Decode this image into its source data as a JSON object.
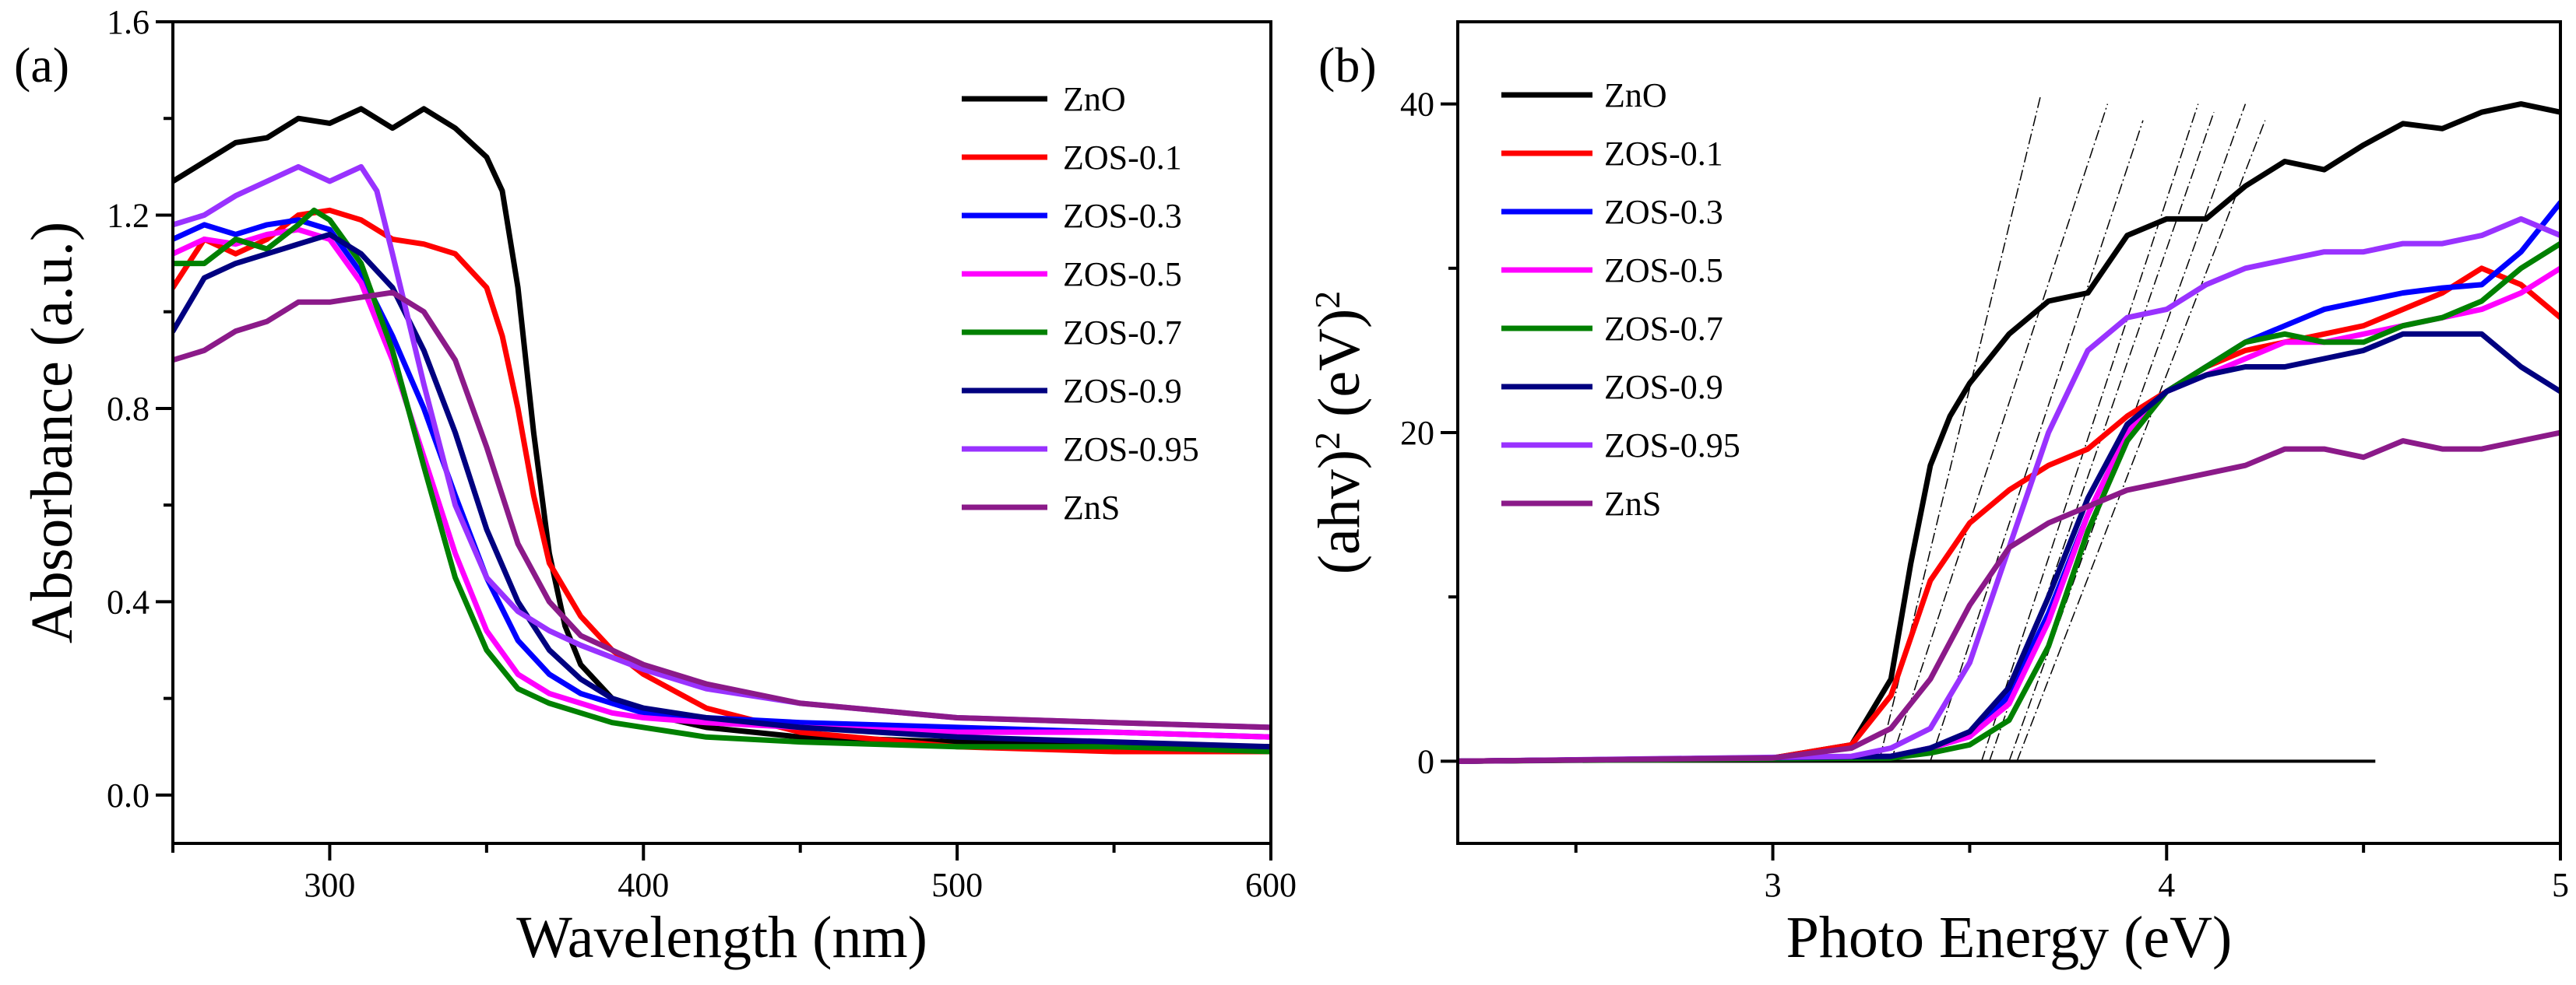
{
  "chart_data": [
    {
      "type": "line",
      "panel_label": "(a)",
      "title": "",
      "xlabel": "Wavelength (nm)",
      "ylabel": "Absorbance (a.u.)",
      "xlim": [
        250,
        600
      ],
      "ylim": [
        -0.1,
        1.6
      ],
      "xticks": [
        300,
        400,
        500,
        600
      ],
      "xtick_labels": [
        "300",
        "400",
        "500",
        "600"
      ],
      "yticks": [
        0.0,
        0.4,
        0.8,
        1.2,
        1.6
      ],
      "ytick_labels": [
        "0.0",
        "0.4",
        "0.8",
        "1.2",
        "1.6"
      ],
      "legend_position": "top-right",
      "series": [
        {
          "name": "ZnO",
          "color": "#000000",
          "x": [
            250,
            260,
            270,
            280,
            290,
            300,
            310,
            320,
            330,
            340,
            350,
            355,
            360,
            365,
            370,
            375,
            380,
            390,
            400,
            420,
            450,
            500,
            550,
            600
          ],
          "y": [
            1.27,
            1.31,
            1.35,
            1.36,
            1.4,
            1.39,
            1.42,
            1.38,
            1.42,
            1.38,
            1.32,
            1.25,
            1.05,
            0.75,
            0.5,
            0.35,
            0.27,
            0.2,
            0.17,
            0.14,
            0.12,
            0.11,
            0.1,
            0.1
          ]
        },
        {
          "name": "ZOS-0.1",
          "color": "#ff0000",
          "x": [
            250,
            260,
            270,
            280,
            290,
            300,
            310,
            320,
            330,
            340,
            350,
            355,
            360,
            365,
            370,
            380,
            390,
            400,
            420,
            450,
            500,
            550,
            600
          ],
          "y": [
            1.05,
            1.15,
            1.12,
            1.15,
            1.2,
            1.21,
            1.19,
            1.15,
            1.14,
            1.12,
            1.05,
            0.95,
            0.8,
            0.62,
            0.48,
            0.37,
            0.3,
            0.25,
            0.18,
            0.13,
            0.1,
            0.09,
            0.09
          ]
        },
        {
          "name": "ZOS-0.3",
          "color": "#0000ff",
          "x": [
            250,
            260,
            270,
            280,
            290,
            300,
            310,
            320,
            330,
            340,
            350,
            360,
            370,
            380,
            390,
            400,
            420,
            450,
            500,
            550,
            600
          ],
          "y": [
            1.15,
            1.18,
            1.16,
            1.18,
            1.19,
            1.17,
            1.08,
            0.95,
            0.8,
            0.62,
            0.45,
            0.32,
            0.25,
            0.21,
            0.19,
            0.17,
            0.16,
            0.15,
            0.14,
            0.13,
            0.12
          ]
        },
        {
          "name": "ZOS-0.5",
          "color": "#ff00ff",
          "x": [
            250,
            260,
            270,
            280,
            290,
            300,
            310,
            320,
            330,
            340,
            350,
            360,
            370,
            380,
            390,
            400,
            420,
            450,
            500,
            550,
            600
          ],
          "y": [
            1.12,
            1.15,
            1.14,
            1.16,
            1.17,
            1.15,
            1.06,
            0.9,
            0.7,
            0.5,
            0.34,
            0.25,
            0.21,
            0.19,
            0.17,
            0.16,
            0.15,
            0.14,
            0.13,
            0.13,
            0.12
          ]
        },
        {
          "name": "ZOS-0.7",
          "color": "#008000",
          "x": [
            250,
            260,
            270,
            280,
            290,
            295,
            300,
            310,
            320,
            330,
            340,
            350,
            360,
            370,
            380,
            390,
            400,
            420,
            450,
            500,
            550,
            600
          ],
          "y": [
            1.1,
            1.1,
            1.15,
            1.13,
            1.18,
            1.21,
            1.19,
            1.1,
            0.92,
            0.68,
            0.45,
            0.3,
            0.22,
            0.19,
            0.17,
            0.15,
            0.14,
            0.12,
            0.11,
            0.1,
            0.1,
            0.09
          ]
        },
        {
          "name": "ZOS-0.9",
          "color": "#000080",
          "x": [
            250,
            260,
            270,
            280,
            290,
            300,
            310,
            320,
            330,
            340,
            350,
            360,
            370,
            380,
            390,
            400,
            420,
            450,
            500,
            550,
            600
          ],
          "y": [
            0.96,
            1.07,
            1.1,
            1.12,
            1.14,
            1.16,
            1.12,
            1.05,
            0.92,
            0.75,
            0.55,
            0.4,
            0.3,
            0.24,
            0.2,
            0.18,
            0.16,
            0.14,
            0.12,
            0.11,
            0.1
          ]
        },
        {
          "name": "ZOS-0.95",
          "color": "#9932ff",
          "x": [
            250,
            260,
            270,
            280,
            290,
            300,
            310,
            315,
            320,
            330,
            340,
            350,
            360,
            370,
            380,
            400,
            420,
            450,
            500,
            550,
            600
          ],
          "y": [
            1.18,
            1.2,
            1.24,
            1.27,
            1.3,
            1.27,
            1.3,
            1.25,
            1.12,
            0.85,
            0.6,
            0.45,
            0.38,
            0.34,
            0.31,
            0.26,
            0.22,
            0.19,
            0.16,
            0.15,
            0.14
          ]
        },
        {
          "name": "ZnS",
          "color": "#8b1a89",
          "x": [
            250,
            260,
            270,
            280,
            290,
            300,
            310,
            320,
            330,
            340,
            350,
            360,
            370,
            380,
            390,
            400,
            420,
            450,
            500,
            550,
            600
          ],
          "y": [
            0.9,
            0.92,
            0.96,
            0.98,
            1.02,
            1.02,
            1.03,
            1.04,
            1.0,
            0.9,
            0.72,
            0.52,
            0.4,
            0.33,
            0.3,
            0.27,
            0.23,
            0.19,
            0.16,
            0.15,
            0.14
          ]
        }
      ]
    },
    {
      "type": "line",
      "panel_label": "(b)",
      "title": "",
      "xlabel": "Photo Energy (eV)",
      "ylabel": "(ahv)² (eV)²",
      "ylabel_parts": [
        "(ahv)",
        "2",
        " (eV)",
        "2"
      ],
      "xlim": [
        2.2,
        5.0
      ],
      "ylim": [
        -5,
        45
      ],
      "xticks": [
        3,
        4,
        5
      ],
      "xtick_labels": [
        "3",
        "4",
        "5"
      ],
      "yticks": [
        0,
        20,
        40
      ],
      "ytick_labels": [
        "0",
        "20",
        "40"
      ],
      "legend_position": "top-left",
      "baseline": {
        "x": [
          2.2,
          4.53
        ],
        "y": [
          0,
          0
        ]
      },
      "tangent_lines": [
        {
          "x": [
            3.27,
            3.68
          ],
          "y": [
            0,
            40.5
          ]
        },
        {
          "x": [
            3.3,
            3.85
          ],
          "y": [
            0,
            40
          ]
        },
        {
          "x": [
            3.4,
            3.94
          ],
          "y": [
            0,
            39
          ]
        },
        {
          "x": [
            3.53,
            4.08
          ],
          "y": [
            0,
            40
          ]
        },
        {
          "x": [
            3.55,
            4.12
          ],
          "y": [
            0,
            39.5
          ]
        },
        {
          "x": [
            3.6,
            4.2
          ],
          "y": [
            0,
            40
          ]
        },
        {
          "x": [
            3.62,
            4.25
          ],
          "y": [
            0,
            39
          ]
        }
      ],
      "series": [
        {
          "name": "ZnO",
          "color": "#000000",
          "x": [
            2.2,
            3.0,
            3.2,
            3.3,
            3.35,
            3.4,
            3.45,
            3.5,
            3.6,
            3.7,
            3.8,
            3.9,
            4.0,
            4.1,
            4.2,
            4.3,
            4.4,
            4.5,
            4.6,
            4.7,
            4.8,
            4.9,
            5.0
          ],
          "y": [
            0,
            0.2,
            1.0,
            5.0,
            12.0,
            18.0,
            21.0,
            23.0,
            26.0,
            28.0,
            28.5,
            32.0,
            33.0,
            33.0,
            35.0,
            36.5,
            36.0,
            37.5,
            38.8,
            38.5,
            39.5,
            40.0,
            39.5
          ]
        },
        {
          "name": "ZOS-0.1",
          "color": "#ff0000",
          "x": [
            2.2,
            3.0,
            3.2,
            3.3,
            3.4,
            3.5,
            3.6,
            3.7,
            3.8,
            3.9,
            4.0,
            4.1,
            4.2,
            4.3,
            4.4,
            4.5,
            4.6,
            4.7,
            4.8,
            4.9,
            5.0
          ],
          "y": [
            0,
            0.2,
            1.0,
            4.0,
            11.0,
            14.5,
            16.5,
            18.0,
            19.0,
            21.0,
            22.5,
            24.0,
            25.0,
            25.5,
            26.0,
            26.5,
            27.5,
            28.5,
            30.0,
            29.0,
            27.0
          ]
        },
        {
          "name": "ZOS-0.3",
          "color": "#0000ff",
          "x": [
            2.2,
            3.3,
            3.4,
            3.5,
            3.6,
            3.7,
            3.8,
            3.9,
            4.0,
            4.1,
            4.2,
            4.3,
            4.4,
            4.5,
            4.6,
            4.7,
            4.8,
            4.9,
            5.0
          ],
          "y": [
            0,
            0.3,
            0.8,
            1.5,
            4.0,
            9.0,
            15.0,
            20.0,
            22.5,
            24.0,
            25.5,
            26.5,
            27.5,
            28.0,
            28.5,
            28.8,
            29.0,
            31.0,
            34.0
          ]
        },
        {
          "name": "ZOS-0.5",
          "color": "#ff00ff",
          "x": [
            2.2,
            3.3,
            3.4,
            3.5,
            3.6,
            3.7,
            3.8,
            3.9,
            4.0,
            4.1,
            4.2,
            4.3,
            4.4,
            4.5,
            4.6,
            4.7,
            4.8,
            4.9,
            5.0
          ],
          "y": [
            0,
            0.3,
            0.8,
            1.5,
            3.5,
            8.5,
            15.0,
            20.0,
            22.5,
            23.5,
            24.5,
            25.5,
            25.5,
            26.0,
            26.5,
            27.0,
            27.5,
            28.5,
            30.0
          ]
        },
        {
          "name": "ZOS-0.7",
          "color": "#008000",
          "x": [
            2.2,
            3.3,
            3.4,
            3.5,
            3.6,
            3.7,
            3.8,
            3.9,
            4.0,
            4.1,
            4.2,
            4.3,
            4.4,
            4.5,
            4.6,
            4.7,
            4.8,
            4.9,
            5.0
          ],
          "y": [
            0,
            0.2,
            0.5,
            1.0,
            2.5,
            7.0,
            14.0,
            19.5,
            22.5,
            24.0,
            25.5,
            26.0,
            25.5,
            25.5,
            26.5,
            27.0,
            28.0,
            30.0,
            31.5
          ]
        },
        {
          "name": "ZOS-0.9",
          "color": "#000080",
          "x": [
            2.2,
            3.3,
            3.4,
            3.5,
            3.6,
            3.7,
            3.8,
            3.9,
            4.0,
            4.1,
            4.2,
            4.3,
            4.4,
            4.5,
            4.6,
            4.7,
            4.8,
            4.9,
            5.0
          ],
          "y": [
            0,
            0.3,
            0.8,
            1.8,
            4.5,
            10.0,
            16.0,
            20.5,
            22.5,
            23.5,
            24.0,
            24.0,
            24.5,
            25.0,
            26.0,
            26.0,
            26.0,
            24.0,
            22.5
          ]
        },
        {
          "name": "ZOS-0.95",
          "color": "#9932ff",
          "x": [
            2.2,
            3.2,
            3.3,
            3.4,
            3.5,
            3.6,
            3.7,
            3.8,
            3.9,
            4.0,
            4.1,
            4.2,
            4.3,
            4.4,
            4.5,
            4.6,
            4.7,
            4.8,
            4.9,
            5.0
          ],
          "y": [
            0,
            0.3,
            0.8,
            2.0,
            6.0,
            13.0,
            20.0,
            25.0,
            27.0,
            27.5,
            29.0,
            30.0,
            30.5,
            31.0,
            31.0,
            31.5,
            31.5,
            32.0,
            33.0,
            32.0
          ]
        },
        {
          "name": "ZnS",
          "color": "#8b1a89",
          "x": [
            2.2,
            3.0,
            3.2,
            3.3,
            3.4,
            3.5,
            3.6,
            3.7,
            3.8,
            3.9,
            4.0,
            4.1,
            4.2,
            4.3,
            4.4,
            4.5,
            4.6,
            4.7,
            4.8,
            4.9,
            5.0
          ],
          "y": [
            0,
            0.2,
            0.8,
            2.0,
            5.0,
            9.5,
            13.0,
            14.5,
            15.5,
            16.5,
            17.0,
            17.5,
            18.0,
            19.0,
            19.0,
            18.5,
            19.5,
            19.0,
            19.0,
            19.5,
            20.0
          ]
        }
      ]
    }
  ]
}
